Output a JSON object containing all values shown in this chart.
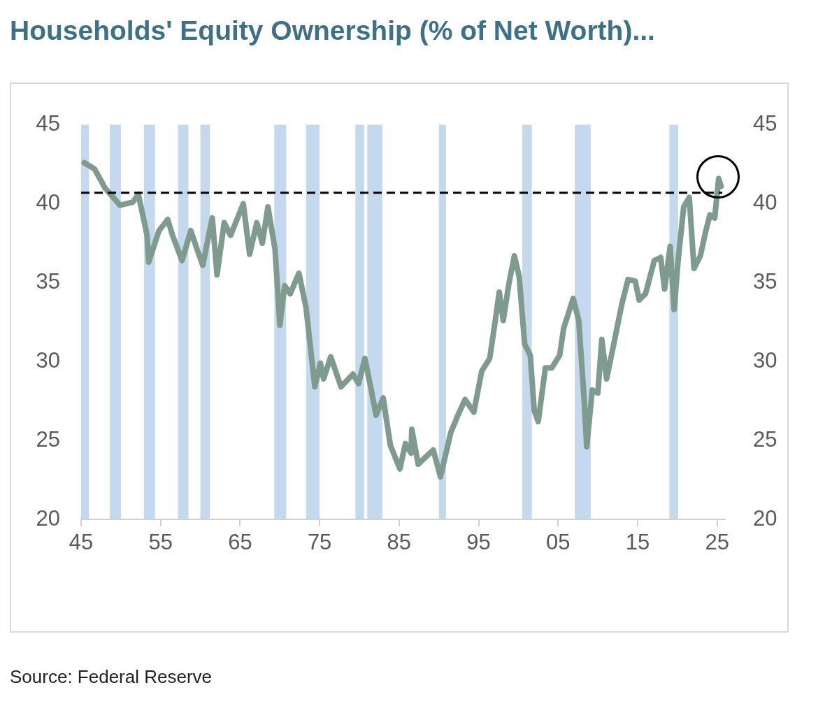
{
  "chart_data": {
    "type": "line",
    "title": "Households' Equity Ownership (% of Net Worth)...",
    "annotations": [
      "Source: Federal Reserve"
    ],
    "series": [
      {
        "color": "#7f9a8f",
        "x": [
          1945.4,
          1946.7,
          1948.0,
          1949.9,
          1951.5,
          1952.2,
          1953.3,
          1953.5,
          1954.8,
          1955.9,
          1956.5,
          1957.7,
          1958.8,
          1959.6,
          1960.3,
          1961.5,
          1962.1,
          1963.0,
          1963.8,
          1965.4,
          1966.2,
          1967.1,
          1967.8,
          1968.5,
          1969.4,
          1970.0,
          1970.6,
          1971.3,
          1972.4,
          1973.3,
          1974.4,
          1975.1,
          1975.5,
          1976.4,
          1977.7,
          1979.2,
          1979.9,
          1980.7,
          1981.5,
          1982.1,
          1983.0,
          1983.9,
          1985.1,
          1985.8,
          1986.5,
          1986.6,
          1987.4,
          1989.3,
          1990.2,
          1991.5,
          1992.4,
          1993.3,
          1994.4,
          1995.4,
          1996.4,
          1997.1,
          1997.6,
          1998.1,
          1998.8,
          1999.5,
          2000.1,
          2000.8,
          2001.5,
          2002.0,
          2002.5,
          2003.4,
          2004.2,
          2005.2,
          2005.7,
          2006.9,
          2007.6,
          2008.3,
          2008.6,
          2009.3,
          2010.0,
          2010.5,
          2011.1,
          2012.0,
          2013.0,
          2013.8,
          2014.7,
          2015.2,
          2016.0,
          2017.1,
          2017.9,
          2018.4,
          2019.1,
          2019.6,
          2020.1,
          2020.8,
          2021.5,
          2022.1,
          2022.9,
          2023.5,
          2024.1,
          2024.7,
          2025.2,
          2025.5
        ],
        "values": [
          42.6,
          42.2,
          41.0,
          39.9,
          40.1,
          40.6,
          38.0,
          36.3,
          38.3,
          39.0,
          38.0,
          36.4,
          38.3,
          37.1,
          36.1,
          39.1,
          35.5,
          38.8,
          38.0,
          40.0,
          36.8,
          38.8,
          37.5,
          39.8,
          37.1,
          32.3,
          34.8,
          34.3,
          35.6,
          33.4,
          28.4,
          29.9,
          28.9,
          30.3,
          28.4,
          29.2,
          28.6,
          30.2,
          28.2,
          26.6,
          27.7,
          24.7,
          23.2,
          24.8,
          24.2,
          25.7,
          23.5,
          24.4,
          22.7,
          25.5,
          26.6,
          27.6,
          26.8,
          29.4,
          30.2,
          32.6,
          34.4,
          32.6,
          34.9,
          36.7,
          35.4,
          31.1,
          30.4,
          26.9,
          26.2,
          29.6,
          29.6,
          30.4,
          32.1,
          34.0,
          32.6,
          27.4,
          24.6,
          28.2,
          28.0,
          31.4,
          28.9,
          31.1,
          33.6,
          35.2,
          35.1,
          33.9,
          34.3,
          36.4,
          36.6,
          34.6,
          37.3,
          33.3,
          36.4,
          39.8,
          40.4,
          35.9,
          36.7,
          38.1,
          39.3,
          39.1,
          41.6,
          41.1
        ]
      }
    ],
    "xlim": [
      1945,
      2026
    ],
    "xticks": [
      {
        "value": 1945,
        "label": "45"
      },
      {
        "value": 1955,
        "label": "55"
      },
      {
        "value": 1965,
        "label": "65"
      },
      {
        "value": 1975,
        "label": "75"
      },
      {
        "value": 1985,
        "label": "85"
      },
      {
        "value": 1995,
        "label": "95"
      },
      {
        "value": 2005,
        "label": "05"
      },
      {
        "value": 2015,
        "label": "15"
      },
      {
        "value": 2025,
        "label": "25"
      }
    ],
    "ylim": [
      20,
      45
    ],
    "yticks": [
      20,
      25,
      30,
      35,
      40,
      45
    ],
    "y2lim": [
      20,
      45
    ],
    "y2ticks": [
      20,
      25,
      30,
      35,
      40,
      45
    ],
    "ref_lines": [
      {
        "axis": "y",
        "value": 40.7,
        "color": "#000000",
        "line_style": "dashed"
      }
    ],
    "bands": [
      {
        "axis": "x",
        "from": 1945.0,
        "to": 1946.0,
        "color": "#c5d9ee"
      },
      {
        "axis": "x",
        "from": 1948.6,
        "to": 1950.0,
        "color": "#c5d9ee"
      },
      {
        "axis": "x",
        "from": 1952.9,
        "to": 1954.3,
        "color": "#c5d9ee"
      },
      {
        "axis": "x",
        "from": 1957.2,
        "to": 1958.5,
        "color": "#c5d9ee"
      },
      {
        "axis": "x",
        "from": 1960.0,
        "to": 1961.2,
        "color": "#c5d9ee"
      },
      {
        "axis": "x",
        "from": 1969.3,
        "to": 1970.8,
        "color": "#c5d9ee"
      },
      {
        "axis": "x",
        "from": 1973.3,
        "to": 1975.0,
        "color": "#c5d9ee"
      },
      {
        "axis": "x",
        "from": 1979.5,
        "to": 1980.6,
        "color": "#c5d9ee"
      },
      {
        "axis": "x",
        "from": 1981.0,
        "to": 1982.9,
        "color": "#c5d9ee"
      },
      {
        "axis": "x",
        "from": 1990.0,
        "to": 1990.9,
        "color": "#c5d9ee"
      },
      {
        "axis": "x",
        "from": 2000.5,
        "to": 2001.7,
        "color": "#c5d9ee"
      },
      {
        "axis": "x",
        "from": 2007.1,
        "to": 2009.1,
        "color": "#c5d9ee"
      },
      {
        "axis": "x",
        "from": 2019.0,
        "to": 2020.1,
        "color": "#c5d9ee"
      }
    ],
    "grid": false,
    "legend": false,
    "marker": "none",
    "line_style": "solid"
  }
}
